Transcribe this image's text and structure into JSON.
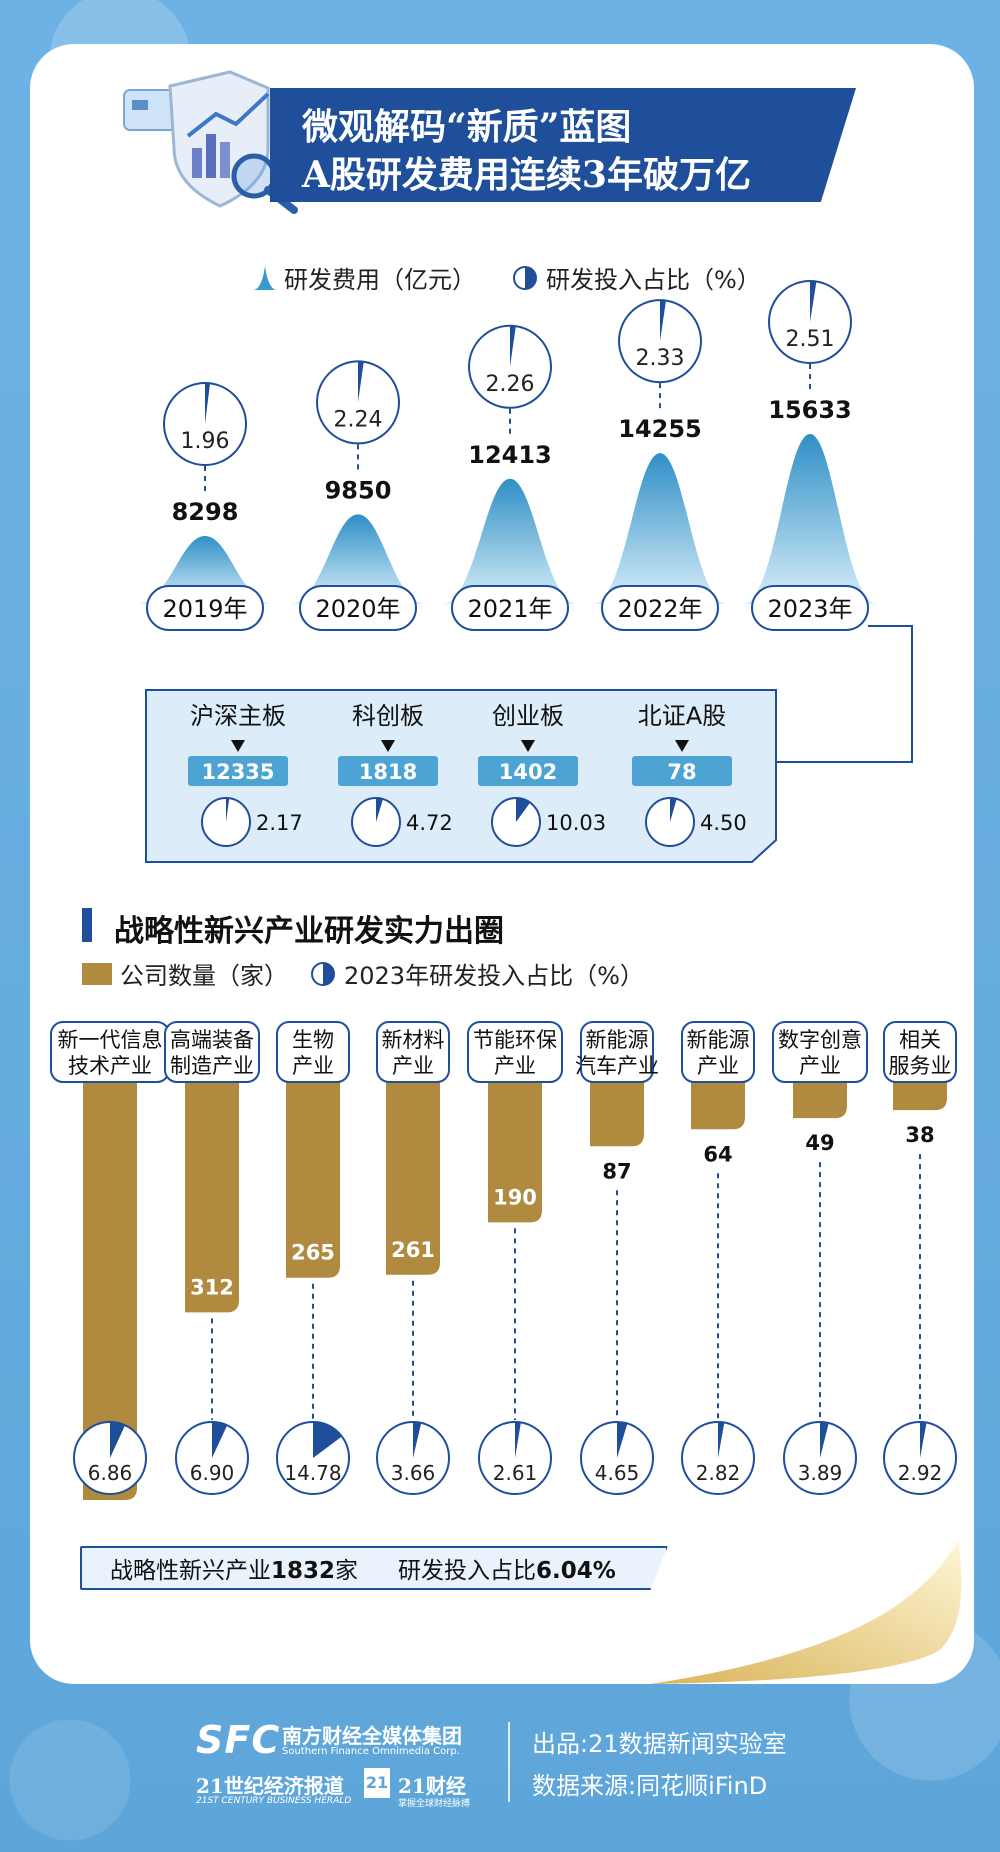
{
  "title": {
    "line1": "微观解码“新质”蓝图",
    "line2": "A股研发费用连续3年破万亿"
  },
  "legend_top": {
    "rd_spending": "研发费用（亿元）",
    "rd_ratio": "研发投入占比（%）"
  },
  "legend_bottom": {
    "company_count": "公司数量（家）",
    "ratio_2023": "2023年研发投入占比（%）"
  },
  "section2_title": "战略性新兴产业研发实力出圈",
  "summary": {
    "label1": "战略性新兴产业",
    "value1": "1832",
    "unit1": "家",
    "label2": "研发投入占比",
    "value2": "6.04%"
  },
  "footer": {
    "brand_abbr": "SFC",
    "brand_cn": "南方财经全媒体集团",
    "brand_en": "Southern Finance Omnimedia Corp.",
    "paper_cn": "21世纪经济报道",
    "paper_en": "21ST CENTURY BUSINESS HERALD",
    "app_logo": "21",
    "app_cn": "21财经",
    "app_sub": "掌握全球财经脉搏",
    "producer": "出品:21数据新闻实验室",
    "source": "数据来源:同花顺iFinD"
  },
  "colors": {
    "navy": "#1f4e9a",
    "gold": "#b08a3e",
    "sky": "#5ea6da"
  },
  "chart_data": [
    {
      "type": "area",
      "categories": [
        "2019年",
        "2020年",
        "2021年",
        "2022年",
        "2023年"
      ],
      "series": [
        {
          "name": "研发费用（亿元）",
          "values": [
            8298,
            9850,
            12413,
            14255,
            15633
          ]
        },
        {
          "name": "研发投入占比（%）",
          "values": [
            1.96,
            2.24,
            2.26,
            2.33,
            2.51
          ]
        }
      ]
    },
    {
      "type": "table",
      "categories": [
        "沪深主板",
        "科创板",
        "创业板",
        "北证A股"
      ],
      "series": [
        {
          "name": "研发费用（亿元）",
          "values": [
            12335,
            1818,
            1402,
            78
          ]
        },
        {
          "name": "研发投入占比（%）",
          "values": [
            2.17,
            4.72,
            10.03,
            4.5
          ],
          "labels": [
            "2.17",
            "4.72",
            "10.03",
            "4.50"
          ]
        }
      ]
    },
    {
      "type": "bar",
      "categories": [
        "新一代信息技术产业",
        "高端装备制造产业",
        "生物产业",
        "新材料产业",
        "节能环保产业",
        "新能源汽车产业",
        "新能源产业",
        "数字创意产业",
        "相关服务业"
      ],
      "category_lines": [
        [
          "新一代信息",
          "技术产业"
        ],
        [
          "高端装备",
          "制造产业"
        ],
        [
          "生物",
          "产业"
        ],
        [
          "新材料",
          "产业"
        ],
        [
          "节能环保",
          "产业"
        ],
        [
          "新能源",
          "汽车产业"
        ],
        [
          "新能源",
          "产业"
        ],
        [
          "数字创意",
          "产业"
        ],
        [
          "相关",
          "服务业"
        ]
      ],
      "series": [
        {
          "name": "公司数量（家）",
          "values": [
            566,
            312,
            265,
            261,
            190,
            87,
            64,
            49,
            38
          ]
        },
        {
          "name": "2023年研发投入占比（%）",
          "values": [
            6.86,
            6.9,
            14.78,
            3.66,
            2.61,
            4.65,
            2.82,
            3.89,
            2.92
          ],
          "labels": [
            "6.86",
            "6.90",
            "14.78",
            "3.66",
            "2.61",
            "4.65",
            "2.82",
            "3.89",
            "2.92"
          ]
        }
      ]
    }
  ]
}
